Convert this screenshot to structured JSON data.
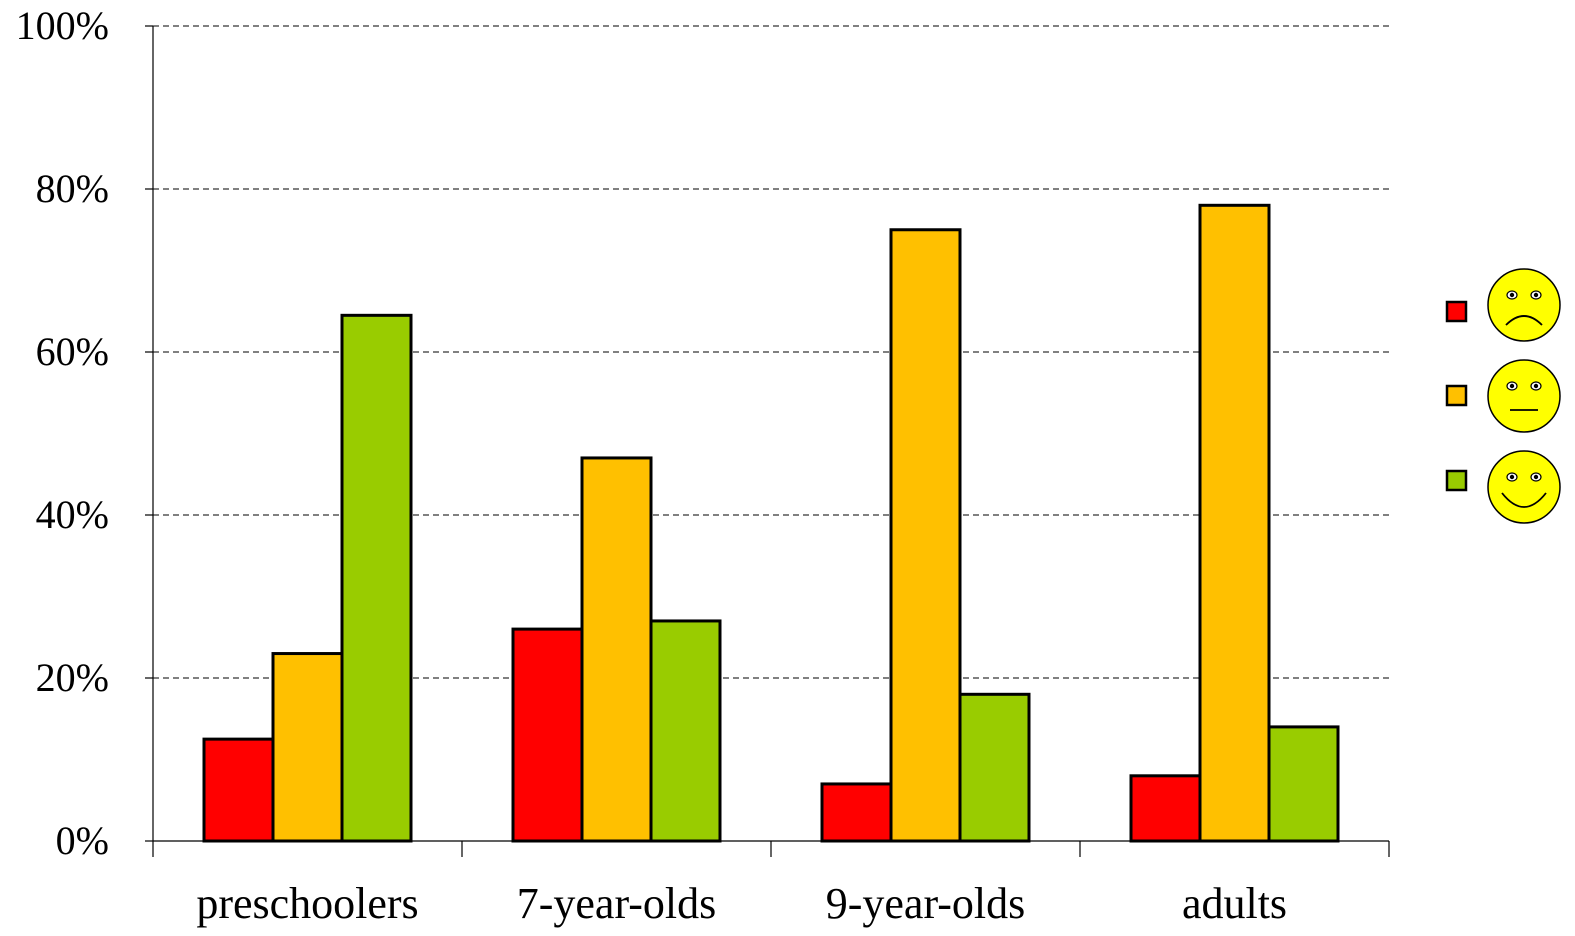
{
  "chart_data": {
    "type": "bar",
    "title": "",
    "xlabel": "",
    "ylabel": "",
    "categories": [
      "preschoolers",
      "7-year-olds",
      "9-year-olds",
      "adults"
    ],
    "series": [
      {
        "color": "#ff0000",
        "icon": "sad-face-icon",
        "values": [
          12.5,
          26,
          7,
          8
        ]
      },
      {
        "color": "#ffc000",
        "icon": "neutral-face-icon",
        "values": [
          23,
          47,
          75,
          78
        ]
      },
      {
        "color": "#99cc00",
        "icon": "happy-face-icon",
        "values": [
          64.5,
          27,
          18,
          14
        ]
      }
    ],
    "ylim": [
      0,
      100
    ],
    "y_ticks": [
      "0%",
      "20%",
      "40%",
      "60%",
      "80%",
      "100%"
    ],
    "grid": true,
    "grid_style": "dashed",
    "legend_position": "right",
    "face_color": "#ffff00"
  }
}
